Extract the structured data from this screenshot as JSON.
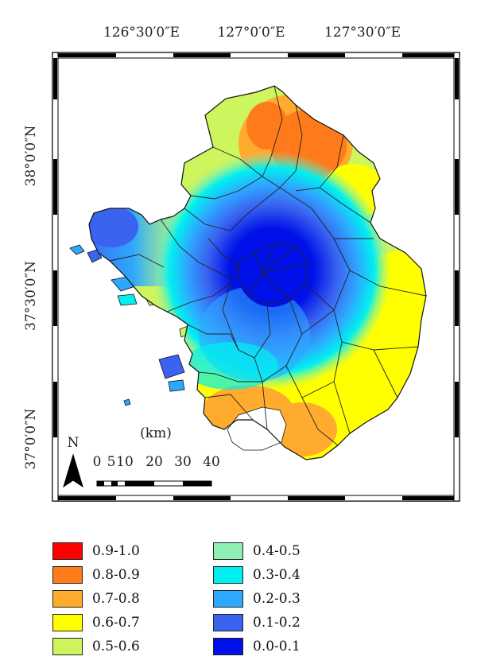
{
  "map": {
    "lon_labels": [
      "126°30′0″E",
      "127°0′0″E",
      "127°30′0″E"
    ],
    "lat_labels": [
      "38°0′0″N",
      "37°30′0″N",
      "37°0′0″N"
    ],
    "north_label": "N",
    "scale_unit": "(km)",
    "scale_ticks": [
      "0",
      "5",
      "10",
      "20",
      "30",
      "40"
    ]
  },
  "legend": {
    "items": [
      {
        "label": "0.9-1.0",
        "color": "#ff0000"
      },
      {
        "label": "0.8-0.9",
        "color": "#ff7a1a"
      },
      {
        "label": "0.7-0.8",
        "color": "#ffab2e"
      },
      {
        "label": "0.6-0.7",
        "color": "#ffff00"
      },
      {
        "label": "0.5-0.6",
        "color": "#ccf55e"
      },
      {
        "label": "0.4-0.5",
        "color": "#8ef0b4"
      },
      {
        "label": "0.3-0.4",
        "color": "#00f0f0"
      },
      {
        "label": "0.2-0.3",
        "color": "#2ea8ff"
      },
      {
        "label": "0.1-0.2",
        "color": "#3a63f0"
      },
      {
        "label": "0.0-0.1",
        "color": "#0010e8"
      }
    ]
  }
}
